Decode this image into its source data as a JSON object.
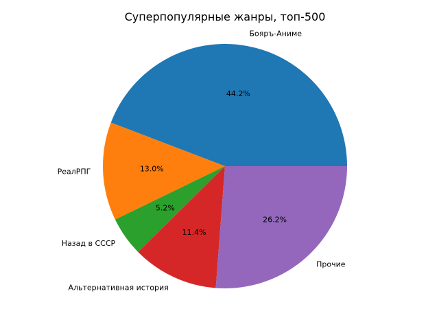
{
  "chart_data": {
    "type": "pie",
    "title": "Суперпопулярные жанры, топ-500",
    "slices": [
      {
        "label": "Бояръ-Аниме",
        "value": 44.2,
        "pct_label": "44.2%",
        "color": "#1f77b4"
      },
      {
        "label": "РеалРПГ",
        "value": 13.0,
        "pct_label": "13.0%",
        "color": "#ff7f0e"
      },
      {
        "label": "Назад в СССР",
        "value": 5.2,
        "pct_label": "5.2%",
        "color": "#2ca02c"
      },
      {
        "label": "Альтернативная история",
        "value": 11.4,
        "pct_label": "11.4%",
        "color": "#d62728"
      },
      {
        "label": "Прочие",
        "value": 26.2,
        "pct_label": "26.2%",
        "color": "#9467bd"
      }
    ],
    "start_angle_deg": 0,
    "direction": "counterclockwise",
    "legend": "none"
  }
}
